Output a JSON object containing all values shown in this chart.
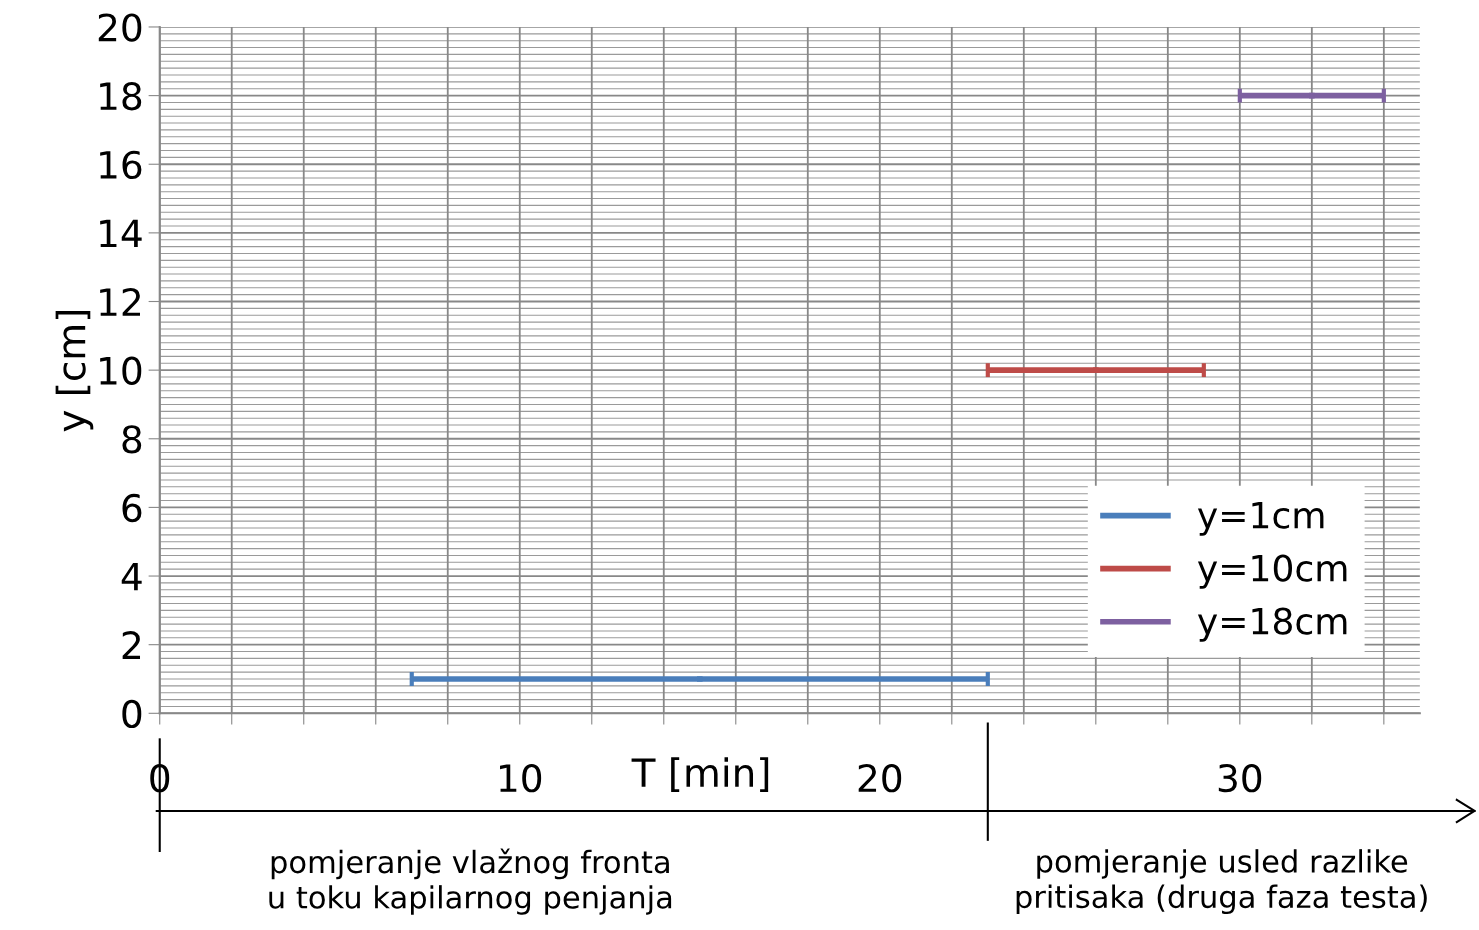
{
  "chart_data": {
    "type": "scatter",
    "xlabel": "T [min]",
    "ylabel": "y [cm]",
    "series": [
      {
        "name": "y=1cm",
        "color": "#4a7ebb",
        "x": [
          15
        ],
        "values": [
          1
        ],
        "xerrors": [
          8
        ]
      },
      {
        "name": "y=10cm",
        "color": "#be4b48",
        "x": [
          26
        ],
        "values": [
          10
        ],
        "xerrors": [
          3
        ]
      },
      {
        "name": "y=18cm",
        "color": "#7d60a0",
        "x": [
          32
        ],
        "values": [
          18
        ],
        "xerrors": [
          2
        ]
      }
    ],
    "marker": "square",
    "xlim": [
      0,
      35
    ],
    "xticks": [
      0,
      {
        "value": 2,
        "label": null
      },
      {
        "value": 4,
        "label": null
      },
      {
        "value": 6,
        "label": null
      },
      {
        "value": 8,
        "label": null
      },
      10,
      {
        "value": 12,
        "label": null
      },
      {
        "value": 14,
        "label": null
      },
      {
        "value": 16,
        "label": null
      },
      {
        "value": 18,
        "label": null
      },
      20,
      {
        "value": 22,
        "label": null
      },
      {
        "value": 24,
        "label": null
      },
      {
        "value": 26,
        "label": null
      },
      {
        "value": 28,
        "label": null
      },
      30,
      {
        "value": 32,
        "label": null
      },
      {
        "value": 34,
        "label": null
      }
    ],
    "ylim": [
      0,
      20
    ],
    "yticks": [
      0,
      2,
      4,
      6,
      8,
      10,
      12,
      14,
      16,
      18,
      20
    ],
    "grid": true,
    "legend": "bottom right",
    "annotations": [
      "pomjeranje vlažnog fronta\nu toku kapilarnog penjanja",
      "pomjeranje usled razlike\npritisaka (druga faza testa)"
    ]
  }
}
